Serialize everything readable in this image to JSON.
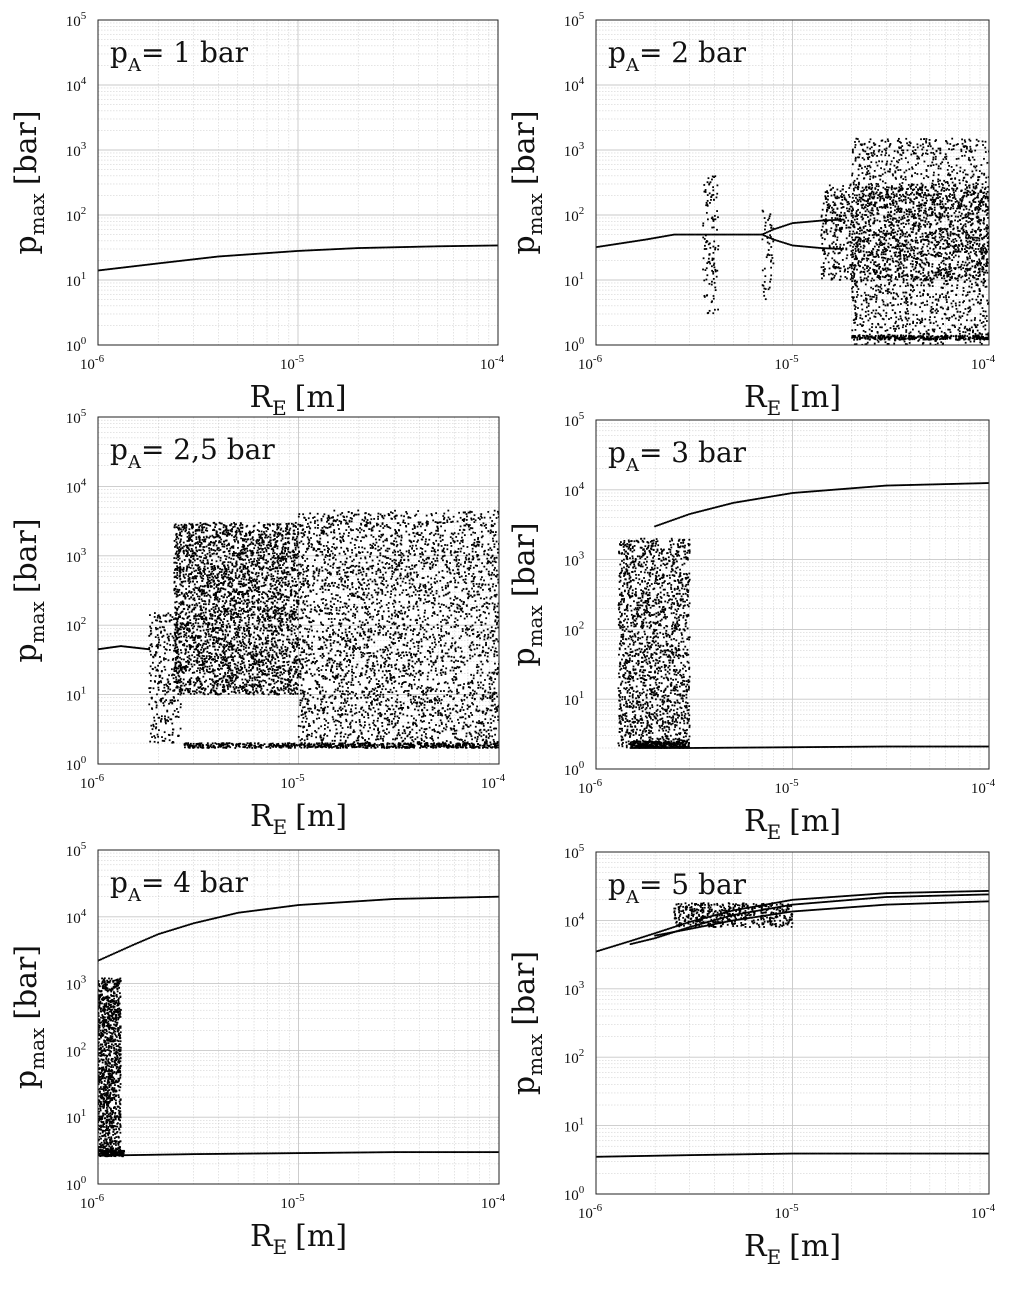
{
  "figure": {
    "xlabel": {
      "main": "R",
      "sub": "E",
      "unit": "[m]"
    },
    "ylabel": {
      "main": "p",
      "sub": "max",
      "unit": "[bar]"
    },
    "x_tick_labels": [
      {
        "base": "10",
        "exp": "-6"
      },
      {
        "base": "10",
        "exp": "-5"
      },
      {
        "base": "10",
        "exp": "-4"
      }
    ],
    "y_tick_labels": [
      {
        "base": "10",
        "exp": "0"
      },
      {
        "base": "10",
        "exp": "1"
      },
      {
        "base": "10",
        "exp": "2"
      },
      {
        "base": "10",
        "exp": "3"
      },
      {
        "base": "10",
        "exp": "4"
      },
      {
        "base": "10",
        "exp": "5"
      }
    ],
    "marker_color": "#000000",
    "grid_color": "#c8c8c8"
  },
  "chart_data": [
    {
      "type": "scatter",
      "label": {
        "main": "p",
        "sub": "A",
        "rest": "= 1 bar"
      },
      "x_scale": "log",
      "y_scale": "log",
      "xlim": [
        1e-06,
        0.0001
      ],
      "ylim": [
        1,
        100000
      ],
      "grid": true,
      "curves": [
        {
          "x": [
            1e-06,
            2e-06,
            4e-06,
            1e-05,
            2e-05,
            5e-05,
            0.0001
          ],
          "y": [
            14,
            18,
            23,
            28,
            31,
            33,
            34
          ]
        }
      ],
      "bands": []
    },
    {
      "type": "scatter",
      "label": {
        "main": "p",
        "sub": "A",
        "rest": "= 2 bar"
      },
      "x_scale": "log",
      "y_scale": "log",
      "xlim": [
        1e-06,
        0.0001
      ],
      "ylim": [
        1,
        100000
      ],
      "grid": true,
      "curves": [
        {
          "x": [
            1e-06,
            1.8e-06,
            2.5e-06,
            3e-06,
            7e-06
          ],
          "y": [
            32,
            42,
            50,
            50,
            50
          ]
        },
        {
          "x": [
            7e-06,
            8e-06,
            1e-05,
            1.4e-05,
            1.8e-05
          ],
          "y": [
            50,
            60,
            75,
            82,
            85
          ]
        },
        {
          "x": [
            7e-06,
            8e-06,
            1e-05,
            1.4e-05,
            1.8e-05
          ],
          "y": [
            50,
            42,
            34,
            31,
            30
          ]
        }
      ],
      "bands": [
        {
          "x_range": [
            3.5e-06,
            4.2e-06
          ],
          "y_range": [
            3,
            400
          ],
          "count": 120
        },
        {
          "x_range": [
            7e-06,
            8e-06
          ],
          "y_range": [
            5,
            120
          ],
          "count": 50
        },
        {
          "x_range": [
            1.4e-05,
            0.00011
          ],
          "y_range": [
            10,
            300
          ],
          "count": 1500
        },
        {
          "x_range": [
            2e-05,
            0.0001
          ],
          "y_range": [
            1,
            1500
          ],
          "count": 1800
        },
        {
          "x_range": [
            2e-05,
            0.0001
          ],
          "y_range": [
            1.2,
            1.4
          ],
          "count": 300
        }
      ]
    },
    {
      "type": "scatter",
      "label": {
        "main": "p",
        "sub": "A",
        "rest": "= 2,5 bar"
      },
      "x_scale": "log",
      "y_scale": "log",
      "xlim": [
        1e-06,
        0.0001
      ],
      "ylim": [
        1,
        100000
      ],
      "grid": true,
      "curves": [
        {
          "x": [
            1e-06,
            1.3e-06,
            1.8e-06
          ],
          "y": [
            45,
            50,
            45
          ]
        }
      ],
      "bands": [
        {
          "x_range": [
            1.8e-06,
            2.6e-06
          ],
          "y_range": [
            2,
            150
          ],
          "count": 300
        },
        {
          "x_range": [
            2.4e-06,
            1e-05
          ],
          "y_range": [
            10,
            3000
          ],
          "count": 3500
        },
        {
          "x_range": [
            1e-05,
            0.0001
          ],
          "y_range": [
            2,
            4500
          ],
          "count": 3500
        },
        {
          "x_range": [
            2.7e-06,
            0.0001
          ],
          "y_range": [
            1.7,
            2
          ],
          "count": 700
        }
      ]
    },
    {
      "type": "scatter",
      "label": {
        "main": "p",
        "sub": "A",
        "rest": "= 3 bar"
      },
      "x_scale": "log",
      "y_scale": "log",
      "xlim": [
        1e-06,
        0.0001
      ],
      "ylim": [
        1,
        100000
      ],
      "grid": true,
      "curves": [
        {
          "x": [
            2e-06,
            3e-06,
            5e-06,
            1e-05,
            3e-05,
            0.0001
          ],
          "y": [
            3000,
            4500,
            6500,
            9000,
            11500,
            12500
          ]
        },
        {
          "x": [
            1.5e-06,
            3e-06,
            1e-05,
            3e-05,
            0.0001
          ],
          "y": [
            2,
            2,
            2.05,
            2.1,
            2.1
          ]
        }
      ],
      "bands": [
        {
          "x_range": [
            1.3e-06,
            3e-06
          ],
          "y_range": [
            2,
            2000
          ],
          "count": 1800
        },
        {
          "x_range": [
            1.5e-06,
            3e-06
          ],
          "y_range": [
            2,
            2.5
          ],
          "count": 300
        }
      ]
    },
    {
      "type": "scatter",
      "label": {
        "main": "p",
        "sub": "A",
        "rest": "= 4 bar"
      },
      "x_scale": "log",
      "y_scale": "log",
      "xlim": [
        1e-06,
        0.0001
      ],
      "ylim": [
        1,
        100000
      ],
      "grid": true,
      "curves": [
        {
          "x": [
            1e-06,
            1.5e-06,
            2e-06,
            3e-06,
            5e-06,
            1e-05,
            3e-05,
            0.0001
          ],
          "y": [
            2200,
            3800,
            5500,
            8000,
            11500,
            15000,
            18500,
            20000
          ]
        },
        {
          "x": [
            1e-06,
            1.4e-06,
            3e-06,
            1e-05,
            3e-05,
            0.0001
          ],
          "y": [
            2.7,
            2.7,
            2.8,
            2.9,
            3.0,
            3.0
          ]
        }
      ],
      "bands": [
        {
          "x_range": [
            1e-06,
            1.3e-06
          ],
          "y_range": [
            3,
            1200
          ],
          "count": 1200
        },
        {
          "x_range": [
            1e-06,
            1.35e-06
          ],
          "y_range": [
            2.6,
            3.2
          ],
          "count": 200
        }
      ]
    },
    {
      "type": "scatter",
      "label": {
        "main": "p",
        "sub": "A",
        "rest": "= 5 bar"
      },
      "x_scale": "log",
      "y_scale": "log",
      "xlim": [
        1e-06,
        0.0001
      ],
      "ylim": [
        1,
        100000
      ],
      "grid": true,
      "curves": [
        {
          "x": [
            1e-06,
            1.5e-06,
            2e-06,
            3e-06,
            5e-06,
            1e-05,
            3e-05,
            0.0001
          ],
          "y": [
            3500,
            5000,
            6500,
            9500,
            14000,
            20000,
            25000,
            27000
          ]
        },
        {
          "x": [
            1.5e-06,
            2e-06,
            3e-06,
            5e-06,
            1e-05,
            3e-05,
            0.0001
          ],
          "y": [
            4500,
            5500,
            8000,
            12000,
            17000,
            22000,
            24000
          ]
        },
        {
          "x": [
            2e-06,
            3e-06,
            5e-06,
            1e-05,
            3e-05,
            0.0001
          ],
          "y": [
            6000,
            7500,
            10000,
            13500,
            17000,
            19000
          ]
        },
        {
          "x": [
            1e-06,
            3e-06,
            1e-05,
            3e-05,
            0.0001
          ],
          "y": [
            3.5,
            3.7,
            3.9,
            3.9,
            3.9
          ]
        }
      ],
      "bands": [
        {
          "x_range": [
            2.5e-06,
            1e-05
          ],
          "y_range": [
            8000,
            18000
          ],
          "count": 500
        }
      ]
    }
  ]
}
